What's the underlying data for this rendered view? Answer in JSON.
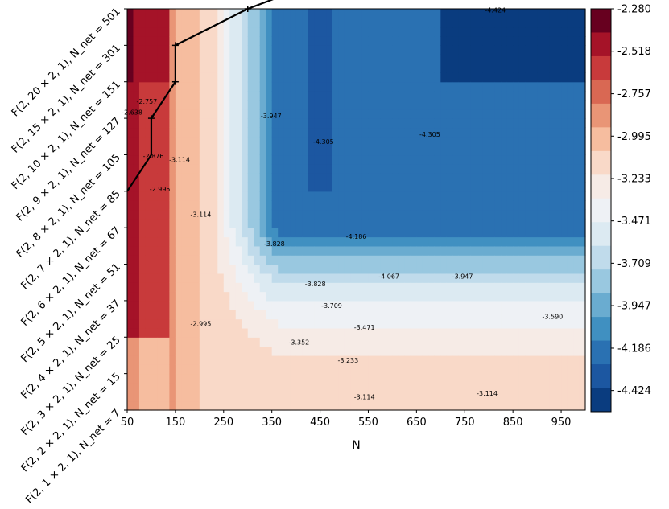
{
  "chart_data": {
    "type": "heatmap",
    "xlabel": "N",
    "x_ticks": [
      "50",
      "150",
      "250",
      "350",
      "450",
      "550",
      "650",
      "750",
      "850",
      "950"
    ],
    "x_values": [
      50,
      100,
      150,
      200,
      250,
      300,
      350,
      400,
      450,
      500,
      550,
      600,
      650,
      700,
      750,
      800,
      850,
      900,
      950,
      1000
    ],
    "y_ticks": [
      "F(2, 1 × 2, 1), N_net = 7",
      "F(2, 2 × 2, 1), N_net = 15",
      "F(2, 3 × 2, 1), N_net = 25",
      "F(2, 4 × 2, 1), N_net = 37",
      "F(2, 5 × 2, 1), N_net = 51",
      "F(2, 6 × 2, 1), N_net = 67",
      "F(2, 7 × 2, 1), N_net = 85",
      "F(2, 8 × 2, 1), N_net = 105",
      "F(2, 9 × 2, 1), N_net = 127",
      "F(2, 10 × 2, 1), N_net = 151",
      "F(2, 15 × 2, 1), N_net = 301",
      "F(2, 20 × 2, 1), N_net = 501"
    ],
    "colorbar": {
      "min": -4.543,
      "max": -2.28,
      "tick_labels": [
        "-2.280",
        "-2.518",
        "-2.757",
        "-2.995",
        "-3.233",
        "-3.471",
        "-3.709",
        "-3.947",
        "-4.186",
        "-4.424"
      ],
      "colors": [
        "#67001f",
        "#a51328",
        "#c83a3b",
        "#d96853",
        "#e99576",
        "#f6bd9f",
        "#f9d9c8",
        "#f6ebe6",
        "#eef1f5",
        "#dceaf2",
        "#c0dbeb",
        "#99c8e0",
        "#6aacd0",
        "#4090c1",
        "#2a71b2",
        "#1c57a1",
        "#0a3c7f"
      ]
    },
    "contour_labels": [
      {
        "text": "-2.638",
        "row": 8.1,
        "col": 0.3
      },
      {
        "text": "-2.757",
        "row": 8.4,
        "col": 1.2
      },
      {
        "text": "-2.876",
        "row": 6.9,
        "col": 1.6
      },
      {
        "text": "-3.114",
        "row": 6.8,
        "col": 3.2
      },
      {
        "text": "-2.995",
        "row": 6.0,
        "col": 2.0
      },
      {
        "text": "-3.114",
        "row": 5.3,
        "col": 4.5
      },
      {
        "text": "-2.995",
        "row": 2.3,
        "col": 4.5
      },
      {
        "text": "-3.947",
        "row": 8.0,
        "col": 8.8
      },
      {
        "text": "-3.828",
        "row": 4.5,
        "col": 9.0
      },
      {
        "text": "-4.305",
        "row": 7.3,
        "col": 12.0
      },
      {
        "text": "-4.305",
        "row": 7.5,
        "col": 18.5
      },
      {
        "text": "-4.424",
        "row": 10.9,
        "col": 22.5
      },
      {
        "text": "-4.186",
        "row": 4.7,
        "col": 14.0
      },
      {
        "text": "-3.828",
        "row": 3.4,
        "col": 11.5
      },
      {
        "text": "-4.067",
        "row": 3.6,
        "col": 16.0
      },
      {
        "text": "-3.947",
        "row": 3.6,
        "col": 20.5
      },
      {
        "text": "-3.709",
        "row": 2.8,
        "col": 12.5
      },
      {
        "text": "-3.590",
        "row": 2.5,
        "col": 26.0
      },
      {
        "text": "-3.471",
        "row": 2.2,
        "col": 14.5
      },
      {
        "text": "-3.352",
        "row": 1.8,
        "col": 10.5
      },
      {
        "text": "-3.233",
        "row": 1.3,
        "col": 13.5
      },
      {
        "text": "-3.114",
        "row": 0.3,
        "col": 14.5
      },
      {
        "text": "-3.114",
        "row": 0.4,
        "col": 22.0
      }
    ],
    "frontier_line": {
      "points": [
        [
          50,
          6.0
        ],
        [
          100,
          7.0
        ],
        [
          100,
          8.0
        ],
        [
          150,
          9.0
        ],
        [
          150,
          10.0
        ],
        [
          300,
          11.0
        ],
        [
          500,
          12.0
        ]
      ],
      "markers": [
        [
          100,
          8.0
        ],
        [
          150,
          9.0
        ],
        [
          150,
          10.0
        ],
        [
          300,
          11.0
        ]
      ]
    }
  }
}
